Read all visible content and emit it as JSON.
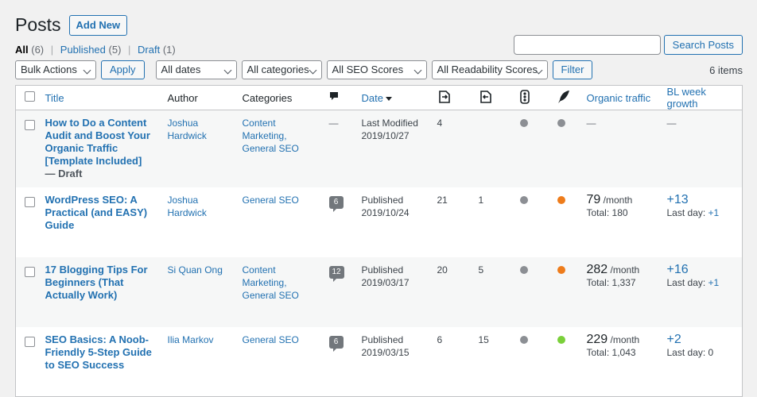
{
  "header": {
    "title": "Posts",
    "add_new": "Add New"
  },
  "views": {
    "all_label": "All",
    "all_count": "(6)",
    "sep": "|",
    "published_label": "Published",
    "published_count": "(5)",
    "draft_label": "Draft",
    "draft_count": "(1)"
  },
  "search": {
    "button": "Search Posts",
    "placeholder": ""
  },
  "filters": {
    "bulk_actions": "Bulk Actions",
    "apply": "Apply",
    "dates": "All dates",
    "categories": "All categories",
    "seo_scores": "All SEO Scores",
    "readability": "All Readability Scores",
    "filter": "Filter",
    "items_count": "6 items"
  },
  "columns": {
    "title": "Title",
    "author": "Author",
    "categories": "Categories",
    "comments_icon": "comment-bubble-icon",
    "date": "Date",
    "outgoing_links_icon": "outgoing-links-icon",
    "incoming_links_icon": "incoming-links-icon",
    "seo_score_icon": "traffic-light-icon",
    "readability_icon": "quill-icon",
    "organic_traffic": "Organic traffic",
    "bl_week_growth": "BL week growth"
  },
  "status_colors": {
    "gray": "#8c8f94",
    "orange": "#ee7c1b",
    "green": "#7ad03a"
  },
  "rows": [
    {
      "title": "How to Do a Content Audit and Boost Your Organic Traffic [Template Included]",
      "state": "— Draft",
      "author": "Joshua Hardwick",
      "categories": "Content Marketing, General SEO",
      "comments": "—",
      "date_status": "Last Modified",
      "date": "2019/10/27",
      "out_links": "4",
      "in_links": "",
      "seo": "gray",
      "readability": "gray",
      "traffic_value": "—",
      "traffic_unit": "",
      "traffic_total": "",
      "bl_value": "—",
      "bl_lastday": ""
    },
    {
      "title": "WordPress SEO: A Practical (and EASY) Guide",
      "state": "",
      "author": "Joshua Hardwick",
      "categories": "General SEO",
      "comments": "6",
      "date_status": "Published",
      "date": "2019/10/24",
      "out_links": "21",
      "in_links": "1",
      "seo": "gray",
      "readability": "orange",
      "traffic_value": "79",
      "traffic_unit": "/month",
      "traffic_total": "Total: 180",
      "bl_value": "+13",
      "bl_lastday_label": "Last day:",
      "bl_lastday": "+1"
    },
    {
      "title": "17 Blogging Tips For Beginners (That Actually Work)",
      "state": "",
      "author": "Si Quan Ong",
      "categories": "Content Marketing, General SEO",
      "comments": "12",
      "date_status": "Published",
      "date": "2019/03/17",
      "out_links": "20",
      "in_links": "5",
      "seo": "gray",
      "readability": "orange",
      "traffic_value": "282",
      "traffic_unit": "/month",
      "traffic_total": "Total: 1,337",
      "bl_value": "+16",
      "bl_lastday_label": "Last day:",
      "bl_lastday": "+1"
    },
    {
      "title": "SEO Basics: A Noob-Friendly 5-Step Guide to SEO Success",
      "state": "",
      "author": "Ilia Markov",
      "categories": "General SEO",
      "comments": "6",
      "date_status": "Published",
      "date": "2019/03/15",
      "out_links": "6",
      "in_links": "15",
      "seo": "gray",
      "readability": "green",
      "traffic_value": "229",
      "traffic_unit": "/month",
      "traffic_total": "Total: 1,043",
      "bl_value": "+2",
      "bl_lastday_label": "Last day:",
      "bl_lastday": "0"
    }
  ]
}
